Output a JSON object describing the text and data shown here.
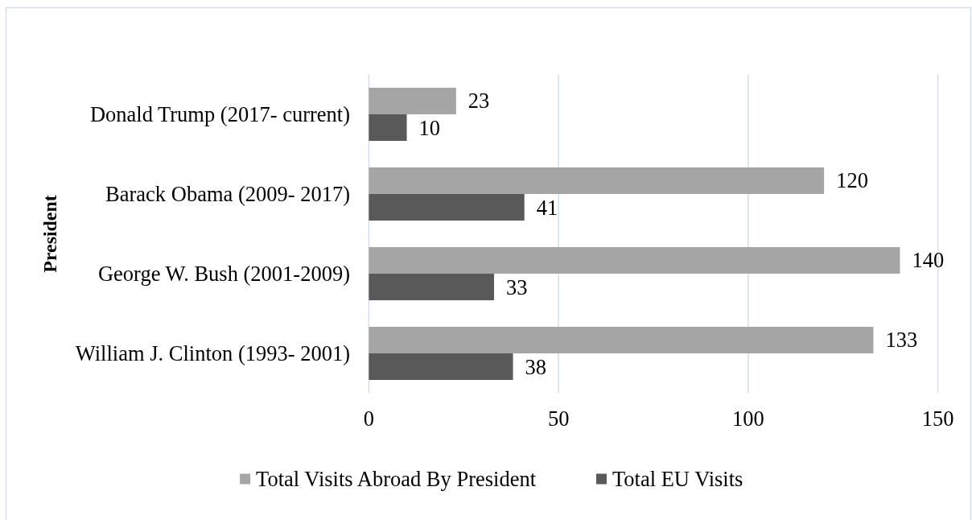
{
  "chart_data": {
    "type": "bar",
    "orientation": "horizontal",
    "categories": [
      "Donald Trump (2017- current)",
      "Barack Obama (2009- 2017)",
      "George W. Bush (2001-2009)",
      "William J. Clinton (1993- 2001)"
    ],
    "series": [
      {
        "name": "Total Visits Abroad By President",
        "color": "#a5a5a5",
        "values": [
          23,
          120,
          140,
          133
        ]
      },
      {
        "name": "Total EU Visits",
        "color": "#595959",
        "values": [
          10,
          41,
          33,
          38
        ]
      }
    ],
    "ylabel": "President",
    "xlim": [
      0,
      150
    ],
    "xticks": [
      0,
      50,
      100,
      150
    ],
    "grid": "x",
    "legend": "bottom",
    "data_labels": true
  }
}
